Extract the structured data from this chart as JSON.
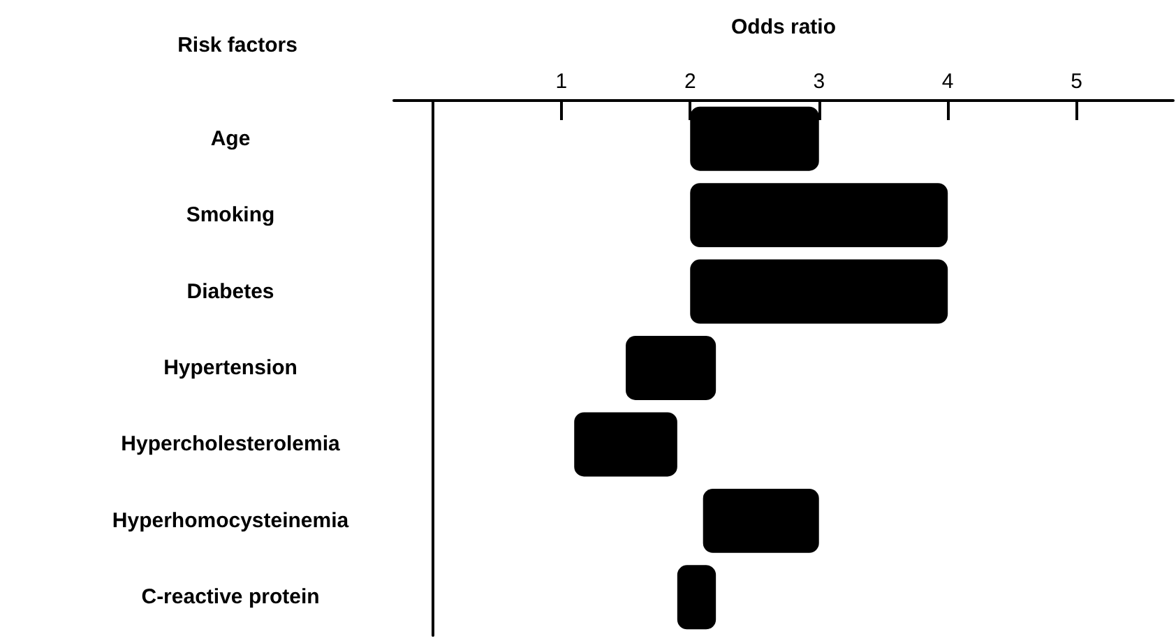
{
  "chart_data": {
    "type": "bar",
    "orientation": "horizontal",
    "xlabel": "Odds ratio",
    "ylabel": "Risk factors",
    "categories": [
      "Age",
      "Smoking",
      "Diabetes",
      "Hypertension",
      "Hypercholesterolemia",
      "Hyperhomocysteinemia",
      "C-reactive protein"
    ],
    "base": [
      2,
      2,
      2,
      1.5,
      1.1,
      2.1,
      1.9
    ],
    "values": [
      1,
      2,
      2,
      0.7,
      0.8,
      0.9,
      0.3
    ],
    "color": "#000000",
    "xlim": [
      -0.3,
      5.75
    ],
    "xticks": [
      1,
      2,
      3,
      4,
      5
    ],
    "grid": false
  }
}
